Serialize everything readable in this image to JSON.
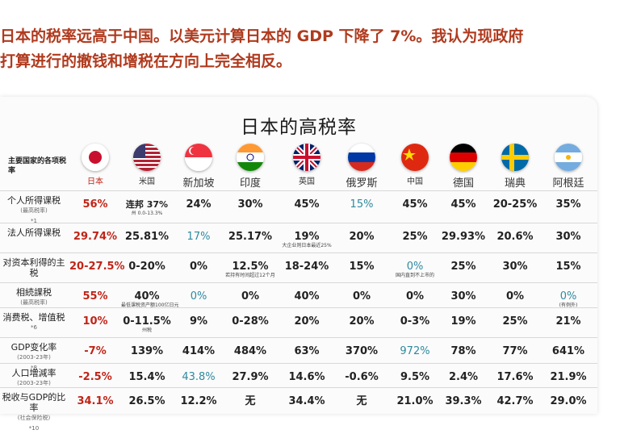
{
  "header": {
    "line1": "日本的税率远高于中国。以美元计算日本的 GDP 下降了 7%。我认为现政府",
    "line2": "打算进行的撤钱和增税在方向上完全相反。"
  },
  "table": {
    "title": "日本的高税率",
    "corner_label": "主要国家的各项税率",
    "countries": [
      "日本",
      "米国",
      "新加坡",
      "印度",
      "英国",
      "俄罗斯",
      "中国",
      "德国",
      "瑞典",
      "阿根廷"
    ],
    "rows": [
      {
        "label": "个人所得课税",
        "sub": "(最高税率)",
        "note": "*1",
        "values": [
          "56%",
          "连邦 37%",
          "24%",
          "30%",
          "45%",
          "15%",
          "45%",
          "45%",
          "20-25%",
          "35%"
        ],
        "subs": [
          "",
          "州 0.0-13.3%",
          "",
          "",
          "",
          "",
          "",
          "",
          "",
          ""
        ]
      },
      {
        "label": "法人所得课税",
        "sub": "",
        "note": "",
        "values": [
          "29.74%",
          "25.81%",
          "17%",
          "25.17%",
          "19%",
          "20%",
          "25%",
          "29.93%",
          "20.6%",
          "30%"
        ],
        "subs": [
          "",
          "",
          "",
          "",
          "大企业则日本最近25%",
          "",
          "",
          "",
          "",
          ""
        ]
      },
      {
        "label": "对资本利得的主税",
        "sub": "",
        "note": "",
        "values": [
          "20-27.5%",
          "0-20%",
          "0%",
          "12.5%",
          "18-24%",
          "15%",
          "0%",
          "25%",
          "30%",
          "15%"
        ],
        "subs": [
          "",
          "",
          "",
          "若持有时间超过12个月",
          "",
          "",
          "国内直到不上市的",
          "",
          "",
          ""
        ]
      },
      {
        "label": "相続課税",
        "sub": "(最高税率)",
        "note": "",
        "values": [
          "55%",
          "40%",
          "0%",
          "0%",
          "40%",
          "0%",
          "0%",
          "30%",
          "0%",
          "0%"
        ],
        "subs": [
          "",
          "最低课税资产额100亿日元",
          "",
          "",
          "",
          "",
          "",
          "",
          "",
          "(有例外)"
        ]
      },
      {
        "label": "消费税、增值税",
        "sub": "",
        "note": "*6",
        "values": [
          "10%",
          "0-11.5%",
          "9%",
          "0-28%",
          "20%",
          "20%",
          "0-3%",
          "19%",
          "25%",
          "21%"
        ],
        "subs": [
          "",
          "州税",
          "",
          "",
          "",
          "",
          "",
          "",
          "",
          ""
        ]
      },
      {
        "label": "GDP变化率",
        "sub": "(2003-23年)",
        "note": "*8",
        "values": [
          "-7%",
          "139%",
          "414%",
          "484%",
          "63%",
          "370%",
          "972%",
          "78%",
          "77%",
          "641%"
        ],
        "subs": [
          "",
          "",
          "",
          "",
          "",
          "",
          "",
          "",
          "",
          ""
        ]
      },
      {
        "label": "人口増減率",
        "sub": "(2003-23年)",
        "note": "",
        "values": [
          "-2.5%",
          "15.4%",
          "43.8%",
          "27.9%",
          "14.6%",
          "-0.6%",
          "9.5%",
          "2.4%",
          "17.6%",
          "21.9%"
        ],
        "subs": [
          "",
          "",
          "",
          "",
          "",
          "",
          "",
          "",
          "",
          ""
        ]
      },
      {
        "label": "税收与GDP的比率",
        "sub": "(社会保险税)",
        "note": "*10",
        "values": [
          "34.1%",
          "26.5%",
          "12.2%",
          "无",
          "34.4%",
          "无",
          "21.0%",
          "39.3%",
          "42.7%",
          "29.0%"
        ],
        "subs": [
          "",
          "",
          "",
          "",
          "",
          "",
          "",
          "",
          "",
          ""
        ]
      }
    ]
  },
  "colors": {
    "header_red": "#b03a1e",
    "japan_red": "#c02418",
    "teal": "#2e8aa0"
  }
}
